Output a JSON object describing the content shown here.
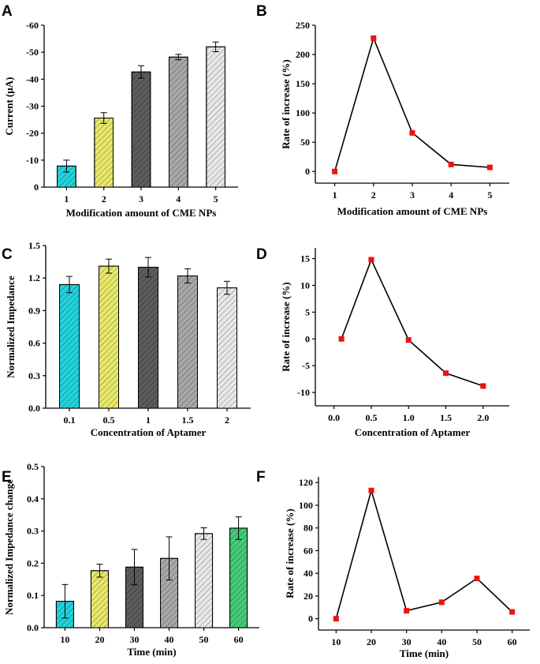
{
  "chart_data": [
    {
      "id": "A",
      "panel_label": "A",
      "type": "bar",
      "xlabel": "Modification amount of CME NPs",
      "ylabel": "Current (μA)",
      "categories": [
        "1",
        "2",
        "3",
        "4",
        "5"
      ],
      "values": [
        -7.8,
        -25.6,
        -42.7,
        -48.2,
        -52.0
      ],
      "errors": [
        2.2,
        2.0,
        2.3,
        1.0,
        1.8
      ],
      "ylim": [
        0,
        -60
      ],
      "yticks": [
        0,
        -10,
        -20,
        -30,
        -40,
        -50,
        -60
      ],
      "ytick_labels": [
        "0",
        "-10",
        "-20",
        "-30",
        "-40",
        "-50",
        "-60"
      ],
      "colors": [
        "#22d4dc",
        "#e8e86a",
        "#5c5c5c",
        "#a8a8a8",
        "#e8e8e8"
      ],
      "hatch": "#000000"
    },
    {
      "id": "B",
      "panel_label": "B",
      "type": "line",
      "xlabel": "Modification amount of CME NPs",
      "ylabel": "Rate of increase (%)",
      "x": [
        1,
        2,
        3,
        4,
        5
      ],
      "y": [
        0,
        228,
        66,
        12,
        7
      ],
      "xlim": [
        0.5,
        5.5
      ],
      "xticks": [
        1,
        2,
        3,
        4,
        5
      ],
      "xtick_labels": [
        "1",
        "2",
        "3",
        "4",
        "5"
      ],
      "ylim": [
        -20,
        250
      ],
      "yticks": [
        0,
        50,
        100,
        150,
        200,
        250
      ],
      "ytick_labels": [
        "0",
        "50",
        "100",
        "150",
        "200",
        "250"
      ],
      "marker_color": "#ee1111"
    },
    {
      "id": "C",
      "panel_label": "C",
      "type": "bar",
      "xlabel": "Concentration of Aptamer",
      "ylabel": "Normalized Impedance",
      "categories": [
        "0.1",
        "0.5",
        "1",
        "1.5",
        "2"
      ],
      "values": [
        1.14,
        1.31,
        1.3,
        1.22,
        1.11
      ],
      "errors": [
        0.075,
        0.065,
        0.09,
        0.065,
        0.06
      ],
      "ylim": [
        0,
        1.5
      ],
      "yticks": [
        0,
        0.3,
        0.6,
        0.9,
        1.2,
        1.5
      ],
      "ytick_labels": [
        "0.0",
        "0.3",
        "0.6",
        "0.9",
        "1.2",
        "1.5"
      ],
      "colors": [
        "#22d4dc",
        "#e8e86a",
        "#5c5c5c",
        "#a8a8a8",
        "#e8e8e8"
      ],
      "hatch": "#000000"
    },
    {
      "id": "D",
      "panel_label": "D",
      "type": "line",
      "xlabel": "Concentration of Aptamer",
      "ylabel": "Rate of increase (%)",
      "x": [
        0.1,
        0.5,
        1.0,
        1.5,
        2.0
      ],
      "y": [
        0,
        14.8,
        -0.2,
        -6.4,
        -8.8
      ],
      "xlim": [
        -0.25,
        2.35
      ],
      "xticks": [
        0.0,
        0.5,
        1.0,
        1.5,
        2.0
      ],
      "xtick_labels": [
        "0.0",
        "0.5",
        "1.0",
        "1.5",
        "2.0"
      ],
      "ylim": [
        -12.5,
        17
      ],
      "yticks": [
        -10,
        -5,
        0,
        5,
        10,
        15
      ],
      "ytick_labels": [
        "-10",
        "-5",
        "0",
        "5",
        "10",
        "15"
      ],
      "marker_color": "#ee1111"
    },
    {
      "id": "E",
      "panel_label": "E",
      "type": "bar",
      "xlabel": "Time (min)",
      "ylabel": "Normalized Impedance change",
      "categories": [
        "10",
        "20",
        "30",
        "40",
        "50",
        "60"
      ],
      "values": [
        0.082,
        0.177,
        0.188,
        0.215,
        0.292,
        0.309
      ],
      "errors": [
        0.052,
        0.02,
        0.055,
        0.067,
        0.018,
        0.035
      ],
      "ylim": [
        0,
        0.5
      ],
      "yticks": [
        0,
        0.1,
        0.2,
        0.3,
        0.4,
        0.5
      ],
      "ytick_labels": [
        "0.0",
        "0.1",
        "0.2",
        "0.3",
        "0.4",
        "0.5"
      ],
      "colors": [
        "#22d4dc",
        "#e8e86a",
        "#5c5c5c",
        "#a8a8a8",
        "#e8e8e8",
        "#44cc77"
      ],
      "hatch": "#000000"
    },
    {
      "id": "F",
      "panel_label": "F",
      "type": "line",
      "xlabel": "Time (min)",
      "ylabel": "Rate of increase (%)",
      "x": [
        10,
        20,
        30,
        40,
        50,
        60
      ],
      "y": [
        0,
        113,
        7,
        14.5,
        35.5,
        6
      ],
      "xlim": [
        5,
        65
      ],
      "xticks": [
        10,
        20,
        30,
        40,
        50,
        60
      ],
      "xtick_labels": [
        "10",
        "20",
        "30",
        "40",
        "50",
        "60"
      ],
      "ylim": [
        -10,
        125
      ],
      "yticks": [
        0,
        20,
        40,
        60,
        80,
        100,
        120
      ],
      "ytick_labels": [
        "0",
        "20",
        "40",
        "60",
        "80",
        "100",
        "120"
      ],
      "marker_color": "#ee1111"
    }
  ]
}
